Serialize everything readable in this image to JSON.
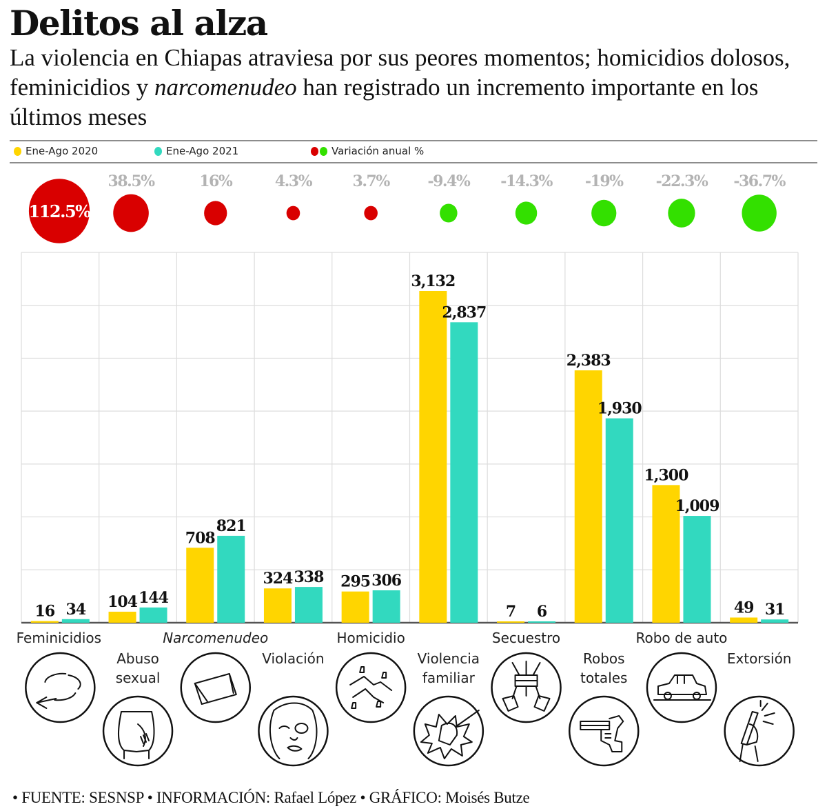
{
  "header": {
    "title": "Delitos al alza",
    "subtitle_parts": [
      "La violencia en Chiapas atraviesa por sus peores momentos; homicidios dolosos, feminicidios y ",
      "narcomenudeo",
      " han registrado un incremento importante en los últimos meses"
    ]
  },
  "legend": [
    {
      "label": "Ene-Ago 2020",
      "color": "#FFD500"
    },
    {
      "label": "Ene-Ago 2021",
      "color": "#32D9BF"
    },
    {
      "label": "Variación anual %",
      "colors": [
        "#D90000",
        "#33E000"
      ]
    }
  ],
  "colors": {
    "y2020": "#FFD500",
    "y2021": "#32D9BF",
    "increase": "#D90000",
    "decrease": "#33E000",
    "pct_label": "#B3B3B3",
    "grid": "#DDDDDD",
    "axis": "#555555"
  },
  "chart_data": {
    "type": "bar",
    "title": "Delitos al alza",
    "xlabel": "",
    "ylabel": "",
    "ylim": [
      0,
      3500
    ],
    "grid": true,
    "legend_position": "top",
    "categories": [
      "Feminicidios",
      "Abuso sexual",
      "Narcomenudeo",
      "Violación",
      "Homicidio",
      "Violencia familiar",
      "Secuestro",
      "Robos totales",
      "Robo de auto",
      "Extorsión"
    ],
    "category_labels": [
      [
        "Feminicidios"
      ],
      [
        "Abuso",
        "sexual"
      ],
      [
        "Narcomenudeo"
      ],
      [
        "Violación"
      ],
      [
        "Homicidio"
      ],
      [
        "Violencia",
        "familiar"
      ],
      [
        "Secuestro"
      ],
      [
        "Robos",
        "totales"
      ],
      [
        "Robo de auto"
      ],
      [
        "Extorsión"
      ]
    ],
    "italic_categories": [
      "Narcomenudeo"
    ],
    "icons": [
      "arrows-circle-icon",
      "groping-hand-icon",
      "drug-packet-icon",
      "bruised-face-icon",
      "crime-scene-body-icon",
      "punch-fist-icon",
      "tied-hands-icon",
      "revolver-icon",
      "car-icon",
      "phone-hand-icon"
    ],
    "series": [
      {
        "name": "Ene-Ago 2020",
        "values": [
          16,
          104,
          708,
          324,
          295,
          3132,
          7,
          2383,
          1300,
          49
        ],
        "labels": [
          "16",
          "104",
          "708",
          "324",
          "295",
          "3,132",
          "7",
          "2,383",
          "1,300",
          "49"
        ]
      },
      {
        "name": "Ene-Ago 2021",
        "values": [
          34,
          144,
          821,
          338,
          306,
          2837,
          6,
          1930,
          1009,
          31
        ],
        "labels": [
          "34",
          "144",
          "821",
          "338",
          "306",
          "2,837",
          "6",
          "1,930",
          "1,009",
          "31"
        ]
      }
    ],
    "variation": {
      "name": "Variación anual %",
      "values": [
        112.5,
        38.5,
        16,
        4.3,
        3.7,
        -9.4,
        -14.3,
        -19,
        -22.3,
        -36.7
      ],
      "labels": [
        "112.5%",
        "38.5%",
        "16%",
        "4.3%",
        "3.7%",
        "-9.4%",
        "-14.3%",
        "-19%",
        "-22.3%",
        "-36.7%"
      ]
    }
  },
  "footer": "• FUENTE: SESNSP • INFORMACIÓN: Rafael López • GRÁFICO: Moisés Butze"
}
